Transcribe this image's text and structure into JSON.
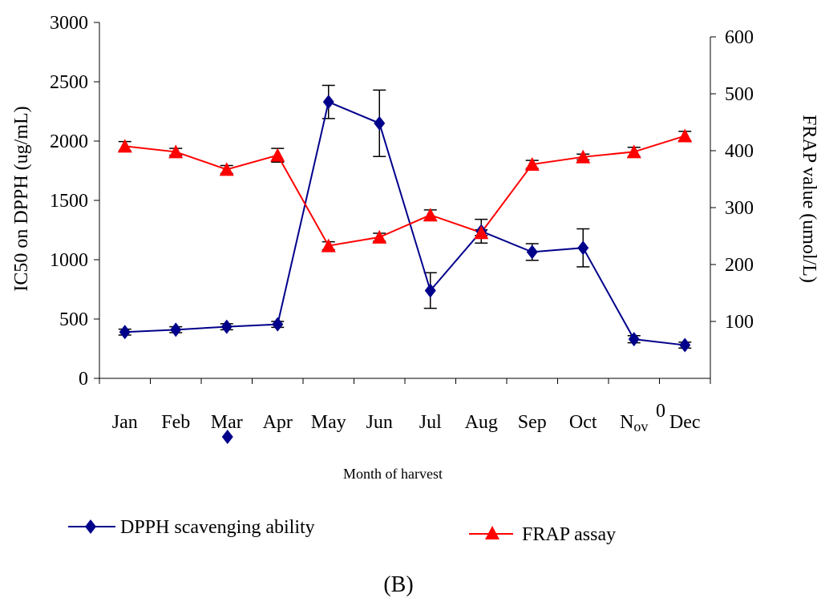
{
  "chart_data": {
    "type": "line",
    "categories": [
      "Jan",
      "Feb",
      "Mar",
      "Apr",
      "May",
      "Jun",
      "Jul",
      "Aug",
      "Sep",
      "Oct",
      "Nov",
      "Dec"
    ],
    "category_labels": [
      "Jan",
      "Feb",
      "Mar",
      "Apr",
      "May",
      "Jun",
      "Jul",
      "Aug",
      "Sep",
      "Oct",
      "N",
      "Dec"
    ],
    "nov_subscript": "ov",
    "xlabel": "Month of harvest",
    "y_left": {
      "label": "IC50 on DPPH (ug/mL)",
      "min": 0,
      "max": 3000,
      "ticks": [
        0,
        500,
        1000,
        1500,
        2000,
        2500,
        3000
      ],
      "tick_labels": [
        "0",
        "500",
        "1000",
        "1500",
        "2000",
        "2500",
        "3000"
      ]
    },
    "y_right": {
      "label": "FRAP value (umol/L)",
      "min": 0,
      "max": 600,
      "ticks": [
        100,
        200,
        300,
        400,
        500,
        600
      ],
      "tick_labels": [
        "100",
        "200",
        "300",
        "400",
        "500",
        "600"
      ],
      "zero_label": "0"
    },
    "series": [
      {
        "name": "DPPH scavenging ability",
        "axis": "left",
        "color": "#00008B",
        "marker": "diamond",
        "values": [
          390,
          410,
          435,
          455,
          2330,
          2150,
          740,
          1240,
          1065,
          1100,
          330,
          280
        ],
        "errors": [
          25,
          25,
          25,
          25,
          140,
          280,
          150,
          100,
          70,
          160,
          30,
          25
        ]
      },
      {
        "name": "FRAP assay",
        "axis": "right",
        "color": "#FF0000",
        "marker": "triangle",
        "values": [
          408,
          398,
          367,
          392,
          233,
          248,
          287,
          256,
          376,
          389,
          398,
          426
        ],
        "errors": [
          8,
          6,
          7,
          12,
          7,
          7,
          9,
          5,
          7,
          5,
          8,
          8
        ]
      }
    ],
    "stray_marker": {
      "category": "Mar",
      "color": "#00008B"
    },
    "legend": {
      "placement": "bottom"
    },
    "grid": false,
    "panel_label": "(B)"
  }
}
